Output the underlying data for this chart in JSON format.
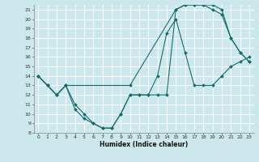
{
  "xlabel": "Humidex (Indice chaleur)",
  "background_color": "#cce8ec",
  "grid_color": "#ffffff",
  "line_color": "#1a6b6b",
  "xlim": [
    -0.5,
    23.5
  ],
  "ylim": [
    8,
    21.5
  ],
  "yticks": [
    8,
    9,
    10,
    11,
    12,
    13,
    14,
    15,
    16,
    17,
    18,
    19,
    20,
    21
  ],
  "xticks": [
    0,
    1,
    2,
    3,
    4,
    5,
    6,
    7,
    8,
    9,
    10,
    11,
    12,
    13,
    14,
    15,
    16,
    17,
    18,
    19,
    20,
    21,
    22,
    23
  ],
  "line1_x": [
    0,
    1,
    2,
    3,
    4,
    5,
    6,
    7,
    8,
    9,
    10,
    11,
    12,
    13,
    14,
    15,
    16,
    17,
    18,
    19,
    20,
    21,
    22,
    23
  ],
  "line1_y": [
    14,
    13,
    12,
    13,
    11,
    10,
    9,
    8.5,
    8.5,
    10,
    12,
    12,
    12,
    14,
    18.5,
    20,
    16.5,
    13,
    13,
    13,
    14,
    15,
    15.5,
    16
  ],
  "line2_x": [
    0,
    1,
    2,
    3,
    4,
    5,
    6,
    7,
    8,
    9,
    10,
    11,
    12,
    13,
    14,
    15,
    16,
    17,
    18,
    19,
    20,
    21,
    22,
    23
  ],
  "line2_y": [
    14,
    13,
    12,
    13,
    10.5,
    9.5,
    9,
    8.5,
    8.5,
    10,
    12,
    12,
    12,
    12,
    12,
    21,
    21.5,
    21.5,
    21.5,
    21,
    20.5,
    18,
    16.5,
    15.5
  ],
  "line3_x": [
    0,
    1,
    2,
    3,
    10,
    15,
    16,
    17,
    18,
    19,
    20,
    21,
    22,
    23
  ],
  "line3_y": [
    14,
    13,
    12,
    13,
    13,
    21,
    21.5,
    21.5,
    21.5,
    21.5,
    21,
    18,
    16.5,
    15.5
  ]
}
